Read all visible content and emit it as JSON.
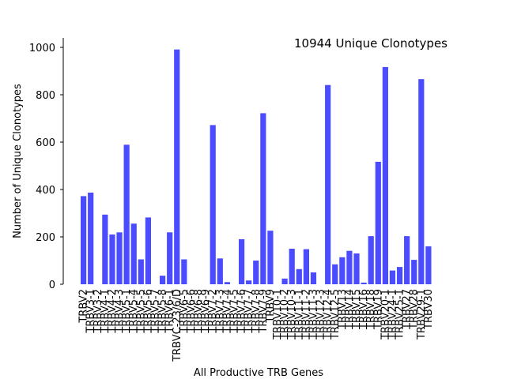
{
  "chart_data": {
    "type": "bar",
    "title": "",
    "annotation": "10944 Unique Clonotypes",
    "xlabel": "All Productive TRB Genes",
    "ylabel": "Number of Unique Clonotypes",
    "ylim": [
      0,
      1040
    ],
    "yticks": [
      0,
      200,
      400,
      600,
      800,
      1000
    ],
    "bar_color": "#4b4bff",
    "grid": false,
    "categories": [
      "TRBV2",
      "TRBV3-1",
      "TRBV3-2",
      "TRBV4-1",
      "TRBV4-2",
      "TRBV4-3",
      "TRBV5-1",
      "TRBV5-4",
      "TRBV5-5",
      "TRBV5-6",
      "TRBV5-7",
      "TRBV5-8",
      "TRBV6-1",
      "TRBVC-23/6/D",
      "TRBV6-5",
      "TRBV6-6",
      "TRBV6-8",
      "TRBV6-9",
      "TRBV7-2",
      "TRBV7-3",
      "TRBV7-4",
      "TRBV7-5",
      "TRBV7-6",
      "TRBV7-7",
      "TRBV7-8",
      "TRBV7-9",
      "TRBV9",
      "TRBV10-1",
      "TRBV10-2",
      "TRBV10-3",
      "TRBV11-1",
      "TRBV11-2",
      "TRBV11-3",
      "TRBV12-3",
      "TRBV12-4",
      "TRBV12-5",
      "TRBV13",
      "TRBV14",
      "TRBV15",
      "TRBV16",
      "TRBV18",
      "TRBV19",
      "TRBV20-1",
      "TRBV24-1",
      "TRBV25-1",
      "TRBV27",
      "TRBV28",
      "TRBV29-1",
      "TRBV30"
    ],
    "values": [
      372,
      387,
      0,
      294,
      210,
      219,
      589,
      256,
      105,
      282,
      0,
      36,
      219,
      991,
      105,
      0,
      0,
      0,
      672,
      109,
      9,
      0,
      190,
      16,
      100,
      722,
      226,
      0,
      24,
      150,
      64,
      148,
      50,
      0,
      841,
      84,
      114,
      141,
      130,
      7,
      203,
      517,
      917,
      58,
      73,
      203,
      103,
      866,
      160
    ]
  }
}
